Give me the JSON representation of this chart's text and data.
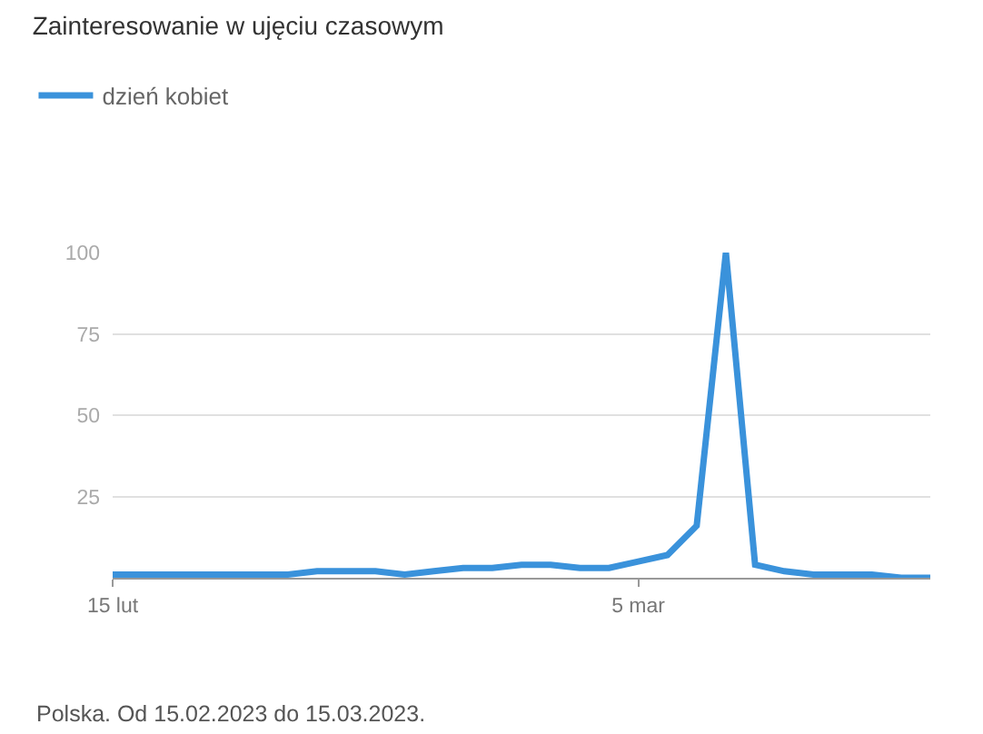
{
  "chart_data": {
    "type": "line",
    "title": "Zainteresowanie w ujęciu czasowym",
    "x": [
      "2023-02-15",
      "2023-02-16",
      "2023-02-17",
      "2023-02-18",
      "2023-02-19",
      "2023-02-20",
      "2023-02-21",
      "2023-02-22",
      "2023-02-23",
      "2023-02-24",
      "2023-02-25",
      "2023-02-26",
      "2023-02-27",
      "2023-02-28",
      "2023-03-01",
      "2023-03-02",
      "2023-03-03",
      "2023-03-04",
      "2023-03-05",
      "2023-03-06",
      "2023-03-07",
      "2023-03-08",
      "2023-03-09",
      "2023-03-10",
      "2023-03-11",
      "2023-03-12",
      "2023-03-13",
      "2023-03-14",
      "2023-03-15"
    ],
    "series": [
      {
        "name": "dzień kobiet",
        "color": "#3a92db",
        "values": [
          1,
          1,
          1,
          1,
          1,
          1,
          1,
          2,
          2,
          2,
          1,
          2,
          3,
          3,
          4,
          4,
          3,
          3,
          5,
          7,
          16,
          100,
          4,
          2,
          1,
          1,
          1,
          0,
          0
        ]
      }
    ],
    "xlim": [
      "2023-02-15",
      "2023-03-15"
    ],
    "xticks": [
      {
        "value": "2023-02-15",
        "label": "15 lut"
      },
      {
        "value": "2023-03-05",
        "label": "5 mar"
      }
    ],
    "ylim": [
      0,
      100
    ],
    "yticks": [
      25,
      50,
      75,
      100
    ],
    "grid": "y",
    "legend": "top left",
    "marker": "none",
    "line_style": "solid",
    "annotations": [
      "Polska. Od 15.02.2023 do 15.03.2023."
    ]
  }
}
